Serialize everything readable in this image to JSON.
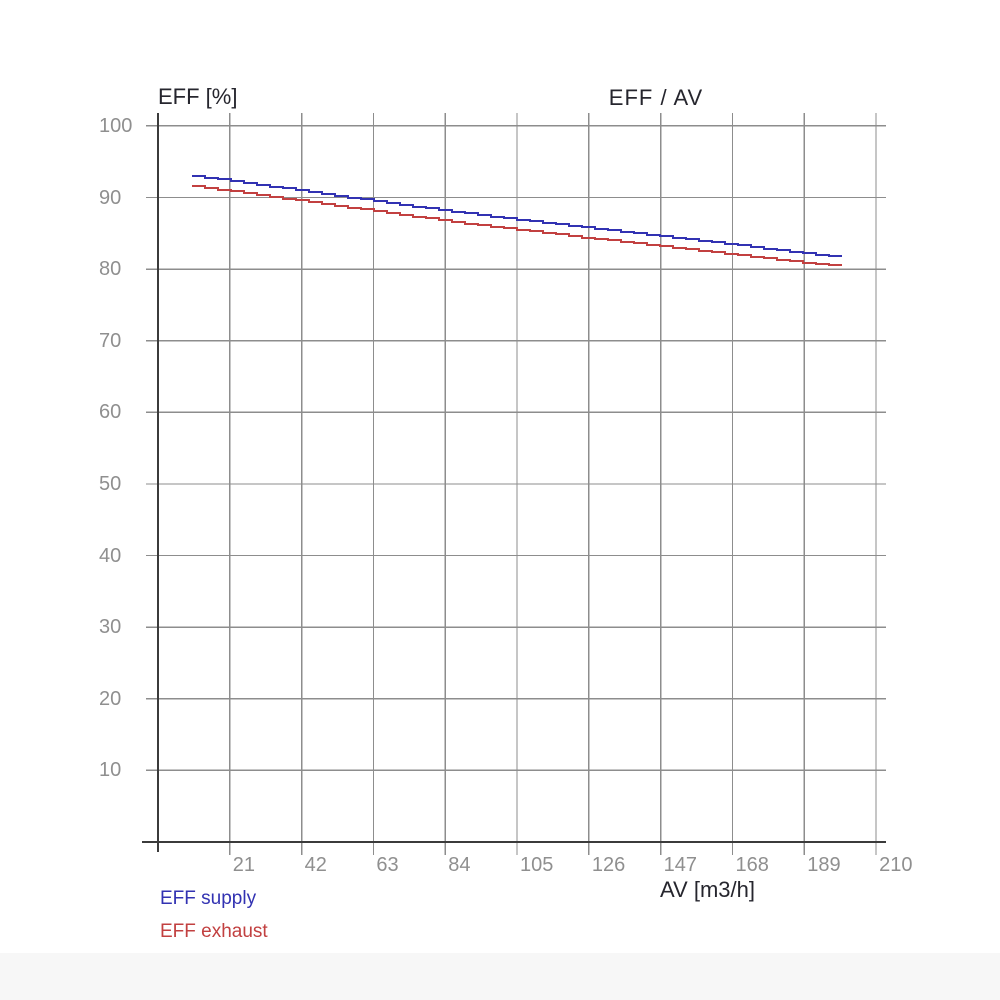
{
  "page": {
    "background_color": "#ffffff",
    "footer_strip_color": "#f7f7f7"
  },
  "chart_data": {
    "type": "line",
    "title": "EFF / AV",
    "y_axis_label": "EFF [%]",
    "x_axis_label": "AV [m3/h]",
    "x_ticks": [
      21,
      42,
      63,
      84,
      105,
      126,
      147,
      168,
      189,
      210
    ],
    "y_ticks": [
      10,
      20,
      30,
      40,
      50,
      60,
      70,
      80,
      90,
      100
    ],
    "xlim": [
      0,
      212.9
    ],
    "ylim": [
      0,
      101.8
    ],
    "grid": true,
    "legend_position": "bottom-left",
    "grid_color": "#8d8d8d",
    "axis_color": "#3b3b3b",
    "tick_label_color": "#8f8f8f",
    "text_color": "#26262e",
    "x": [
      10,
      21,
      42,
      63,
      84,
      105,
      126,
      147,
      168,
      189,
      200
    ],
    "series": [
      {
        "name": "EFF supply",
        "color": "#3232b2",
        "values": [
          93.0,
          92.3,
          90.9,
          89.5,
          88.1,
          86.9,
          85.7,
          84.6,
          83.4,
          82.2,
          81.6
        ]
      },
      {
        "name": "EFF exhaust",
        "color": "#c24040",
        "values": [
          91.6,
          90.9,
          89.5,
          88.1,
          86.7,
          85.5,
          84.3,
          83.2,
          82.0,
          80.9,
          80.4
        ]
      }
    ]
  }
}
